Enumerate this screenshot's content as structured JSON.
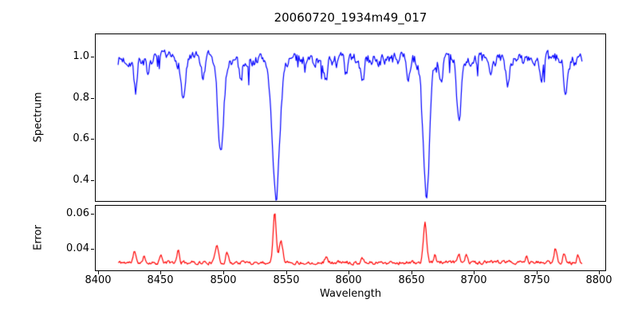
{
  "figure": {
    "title": "20060720_1934m49_017",
    "xlabel": "Wavelength",
    "background": "#ffffff",
    "text_color": "#000000"
  },
  "chart_data": [
    {
      "type": "line",
      "name": "spectrum-panel",
      "title": "20060720_1934m49_017",
      "xlabel": "Wavelength",
      "ylabel": "Spectrum",
      "line_color": "#0000ff",
      "legend": "none",
      "grid": false,
      "xlim": [
        8397.5,
        8805.5
      ],
      "ylim": [
        0.2956,
        1.1122
      ],
      "x_data_range": [
        8416,
        8787
      ],
      "yticks": {
        "values": [
          1.0,
          0.8,
          0.6,
          0.4
        ],
        "labels": [
          "1.0",
          "0.8",
          "0.6",
          "0.4"
        ]
      },
      "xticks": {
        "values": [],
        "labels": []
      },
      "continuum": 0.985,
      "noise": {
        "seed": 7,
        "amplitude": 0.026,
        "smooth": 0.55,
        "dip_prob": 0.05
      },
      "absorption_lines": [
        {
          "center": 8430,
          "min_flux": 0.84,
          "sigma": 1.3
        },
        {
          "center": 8440,
          "min_flux": 0.88,
          "sigma": 1.2
        },
        {
          "center": 8468,
          "min_flux": 0.79,
          "sigma": 1.6
        },
        {
          "center": 8484,
          "min_flux": 0.88,
          "sigma": 1.2
        },
        {
          "center": 8498,
          "min_flux": 0.52,
          "sigma": 2.3
        },
        {
          "center": 8514,
          "min_flux": 0.89,
          "sigma": 1.2
        },
        {
          "center": 8542,
          "min_flux": 0.3,
          "sigma": 2.9
        },
        {
          "center": 8582,
          "min_flux": 0.87,
          "sigma": 1.3
        },
        {
          "center": 8598,
          "min_flux": 0.9,
          "sigma": 1.2
        },
        {
          "center": 8611,
          "min_flux": 0.86,
          "sigma": 1.3
        },
        {
          "center": 8648,
          "min_flux": 0.9,
          "sigma": 1.2
        },
        {
          "center": 8662,
          "min_flux": 0.33,
          "sigma": 2.6
        },
        {
          "center": 8674,
          "min_flux": 0.89,
          "sigma": 1.2
        },
        {
          "center": 8688,
          "min_flux": 0.7,
          "sigma": 1.7
        },
        {
          "center": 8713,
          "min_flux": 0.89,
          "sigma": 1.3
        },
        {
          "center": 8727,
          "min_flux": 0.88,
          "sigma": 1.3
        },
        {
          "center": 8754,
          "min_flux": 0.87,
          "sigma": 1.3
        },
        {
          "center": 8773,
          "min_flux": 0.85,
          "sigma": 1.4
        }
      ]
    },
    {
      "type": "line",
      "name": "error-panel",
      "xlabel": "Wavelength",
      "ylabel": "Error",
      "line_color": "#ff0000",
      "legend": "none",
      "grid": false,
      "xlim": [
        8397.5,
        8805.5
      ],
      "ylim": [
        0.0273,
        0.065
      ],
      "x_data_range": [
        8416,
        8787
      ],
      "yticks": {
        "values": [
          0.06,
          0.04
        ],
        "labels": [
          "0.06",
          "0.04"
        ]
      },
      "xticks": {
        "values": [
          8400,
          8450,
          8500,
          8550,
          8600,
          8650,
          8700,
          8750,
          8800
        ],
        "labels": [
          "8400",
          "8450",
          "8500",
          "8550",
          "8600",
          "8650",
          "8700",
          "8750",
          "8800"
        ]
      },
      "baseline": 0.0322,
      "noise": {
        "seed": 11,
        "amplitude": 0.0009,
        "smooth": 0.5,
        "dip_prob": 0
      },
      "emission_peaks": [
        {
          "center": 8429,
          "peak": 0.0385,
          "sigma": 1.0
        },
        {
          "center": 8437,
          "peak": 0.0355,
          "sigma": 0.9
        },
        {
          "center": 8450,
          "peak": 0.036,
          "sigma": 1.0
        },
        {
          "center": 8464,
          "peak": 0.0393,
          "sigma": 0.9
        },
        {
          "center": 8495,
          "peak": 0.0424,
          "sigma": 1.3
        },
        {
          "center": 8503,
          "peak": 0.0378,
          "sigma": 1.0
        },
        {
          "center": 8541,
          "peak": 0.0618,
          "sigma": 1.2
        },
        {
          "center": 8546,
          "peak": 0.0455,
          "sigma": 1.4
        },
        {
          "center": 8582,
          "peak": 0.0358,
          "sigma": 1.0
        },
        {
          "center": 8611,
          "peak": 0.0352,
          "sigma": 1.0
        },
        {
          "center": 8661,
          "peak": 0.0543,
          "sigma": 1.3
        },
        {
          "center": 8669,
          "peak": 0.0368,
          "sigma": 0.9
        },
        {
          "center": 8688,
          "peak": 0.0372,
          "sigma": 1.0
        },
        {
          "center": 8694,
          "peak": 0.0378,
          "sigma": 0.9
        },
        {
          "center": 8742,
          "peak": 0.0352,
          "sigma": 0.9
        },
        {
          "center": 8765,
          "peak": 0.0402,
          "sigma": 1.1
        },
        {
          "center": 8772,
          "peak": 0.0378,
          "sigma": 0.9
        },
        {
          "center": 8783,
          "peak": 0.036,
          "sigma": 0.9
        }
      ]
    }
  ]
}
